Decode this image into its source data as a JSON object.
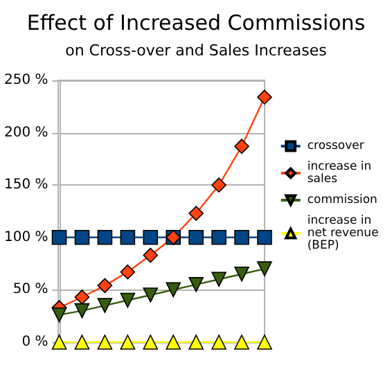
{
  "chart_data": {
    "type": "line",
    "title": "Effect of Increased Commissions",
    "subtitle": "on Cross-over and Sales Increases",
    "categories": [
      null,
      null,
      null,
      null,
      null,
      null,
      null,
      null,
      null,
      null
    ],
    "series": [
      {
        "name": "crossover",
        "color": "#004586",
        "marker": "square",
        "values": [
          100,
          100,
          100,
          100,
          100,
          100,
          100,
          100,
          100,
          100
        ]
      },
      {
        "name": "increase in sales",
        "color": "#ff420e",
        "marker": "diamond",
        "values": [
          33,
          43,
          54,
          67,
          83,
          100,
          123,
          150,
          187,
          234
        ]
      },
      {
        "name": "commission",
        "color": "#355e0e",
        "marker": "triangle-down",
        "values": [
          26,
          30,
          35,
          40,
          45,
          50,
          55,
          60,
          65,
          70
        ]
      },
      {
        "name": "increase in net revenue (BEP)",
        "color": "#ffff00",
        "marker": "triangle",
        "values": [
          0,
          0,
          0,
          0,
          0,
          0,
          0,
          0,
          0,
          0
        ]
      }
    ],
    "ylim": [
      0,
      250
    ],
    "yticks": [
      {
        "value": 0,
        "label": "0 %"
      },
      {
        "value": 50,
        "label": "50 %"
      },
      {
        "value": 100,
        "label": "100 %"
      },
      {
        "value": 150,
        "label": "150 %"
      },
      {
        "value": 200,
        "label": "200 %"
      },
      {
        "value": 250,
        "label": "250 %"
      }
    ],
    "grid": "y",
    "legend": "right"
  }
}
